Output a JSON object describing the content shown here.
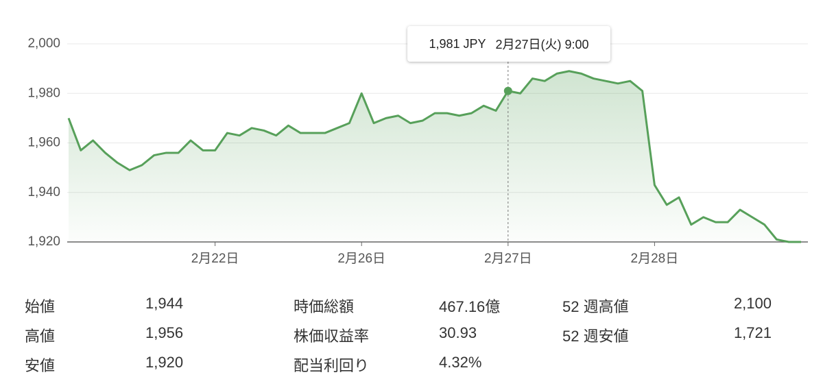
{
  "chart_data": {
    "type": "line",
    "categories": [
      null,
      null,
      null,
      null,
      null,
      null,
      null,
      null,
      null,
      null,
      null,
      null,
      "2月22日",
      null,
      null,
      null,
      null,
      null,
      null,
      null,
      null,
      null,
      null,
      null,
      "2月26日",
      null,
      null,
      null,
      null,
      null,
      null,
      null,
      null,
      null,
      null,
      null,
      "2月27日",
      null,
      null,
      null,
      null,
      null,
      null,
      null,
      null,
      null,
      null,
      null,
      "2月28日",
      null,
      null,
      null,
      null,
      null,
      null,
      null,
      null,
      null,
      null,
      null,
      null
    ],
    "values": [
      1970,
      1957,
      1961,
      1956,
      1952,
      1949,
      1951,
      1955,
      1956,
      1956,
      1961,
      1957,
      1957,
      1964,
      1963,
      1966,
      1965,
      1963,
      1967,
      1964,
      1964,
      1964,
      1966,
      1968,
      1980,
      1968,
      1970,
      1971,
      1968,
      1969,
      1972,
      1972,
      1971,
      1972,
      1975,
      1973,
      1981,
      1980,
      1986,
      1985,
      1988,
      1989,
      1988,
      1986,
      1985,
      1984,
      1985,
      1981,
      1943,
      1935,
      1938,
      1927,
      1930,
      1928,
      1928,
      1933,
      1930,
      1927,
      1921,
      1920,
      1920
    ],
    "color": "#57a05a",
    "ylim": [
      1920,
      2000
    ],
    "yticks": [
      {
        "value": 1920,
        "label": "1,920"
      },
      {
        "value": 1940,
        "label": "1,940"
      },
      {
        "value": 1960,
        "label": "1,960"
      },
      {
        "value": 1980,
        "label": "1,980"
      },
      {
        "value": 2000,
        "label": "2,000"
      }
    ],
    "grid": true,
    "tooltip": {
      "price": "1,981 JPY",
      "time": "2月27日(火) 9:00"
    }
  },
  "stats": [
    [
      {
        "label": "始値",
        "value": "1,944"
      },
      {
        "label": "高値",
        "value": "1,956"
      },
      {
        "label": "安値",
        "value": "1,920"
      }
    ],
    [
      {
        "label": "時価総額",
        "value": "467.16億"
      },
      {
        "label": "株価収益率",
        "value": "30.93"
      },
      {
        "label": "配当利回り",
        "value": "4.32%"
      }
    ],
    [
      {
        "label": "52 週高値",
        "value": "2,100"
      },
      {
        "label": "52 週安値",
        "value": "1,721"
      }
    ]
  ]
}
